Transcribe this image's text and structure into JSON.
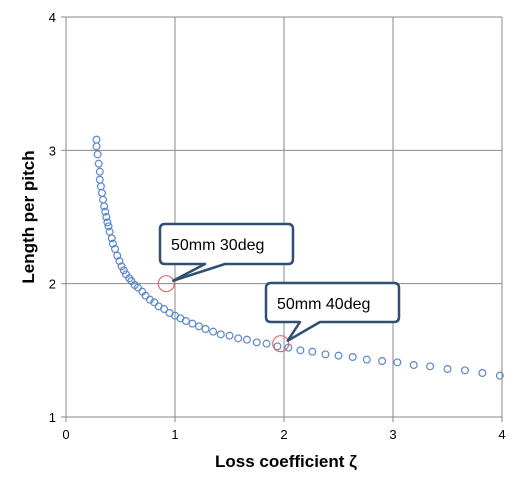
{
  "chart_data": {
    "type": "scatter",
    "title": "",
    "xlabel": "Loss coefficient ζ",
    "ylabel": "Length per pitch",
    "xlim": [
      0,
      4
    ],
    "ylim": [
      1,
      4
    ],
    "x_ticks": [
      "0",
      "1",
      "2",
      "3",
      "4"
    ],
    "y_ticks": [
      "1",
      "2",
      "3",
      "4"
    ],
    "grid": true,
    "legend": "none",
    "marker": "open-circle",
    "series_color": "#5b87c8",
    "highlight_color": "#e06b6b",
    "series": [
      {
        "x": [
          0.28,
          0.28,
          0.29,
          0.3,
          0.31,
          0.31,
          0.32,
          0.33,
          0.34,
          0.35,
          0.36,
          0.37,
          0.38,
          0.39,
          0.4,
          0.42,
          0.43,
          0.45,
          0.47,
          0.49,
          0.51,
          0.53,
          0.55,
          0.58,
          0.6,
          0.63,
          0.66,
          0.7,
          0.73,
          0.77,
          0.81,
          0.85,
          0.9,
          0.95,
          1.0,
          1.05,
          1.1,
          1.16,
          1.22,
          1.28,
          1.35,
          1.42,
          1.5,
          1.58,
          1.66,
          1.75,
          1.84,
          1.94,
          2.04,
          2.15,
          2.26,
          2.38,
          2.5,
          2.63,
          2.76,
          2.9,
          3.04,
          3.19,
          3.34,
          3.5,
          3.66,
          3.82,
          3.98
        ],
        "y": [
          3.08,
          3.03,
          2.97,
          2.9,
          2.84,
          2.78,
          2.73,
          2.68,
          2.63,
          2.58,
          2.54,
          2.5,
          2.46,
          2.43,
          2.39,
          2.34,
          2.3,
          2.26,
          2.21,
          2.17,
          2.13,
          2.1,
          2.07,
          2.04,
          2.02,
          1.99,
          1.97,
          1.94,
          1.91,
          1.88,
          1.86,
          1.83,
          1.81,
          1.78,
          1.76,
          1.74,
          1.72,
          1.7,
          1.68,
          1.66,
          1.64,
          1.62,
          1.61,
          1.59,
          1.58,
          1.56,
          1.55,
          1.53,
          1.52,
          1.5,
          1.49,
          1.47,
          1.46,
          1.45,
          1.43,
          1.42,
          1.41,
          1.39,
          1.38,
          1.36,
          1.35,
          1.33,
          1.31
        ]
      }
    ],
    "annotations": [
      {
        "text": "50mm 30deg",
        "x": 0.92,
        "y": 2.0
      },
      {
        "text": "50mm 40deg",
        "x": 1.97,
        "y": 1.55
      }
    ]
  }
}
